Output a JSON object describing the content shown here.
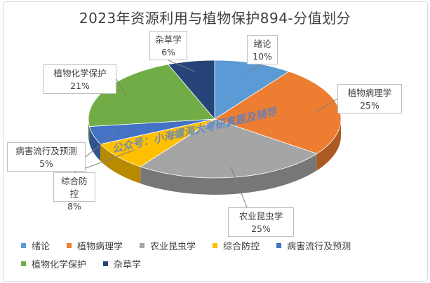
{
  "chart_data": {
    "type": "pie",
    "title": "2023年资源利用与植物保护894-分值划分",
    "slices": [
      {
        "name": "绪论",
        "value": 10,
        "label": "10%",
        "color": "#5b9bd5"
      },
      {
        "name": "植物病理学",
        "value": 25,
        "label": "25%",
        "color": "#ed7d31"
      },
      {
        "name": "农业昆虫学",
        "value": 25,
        "label": "25%",
        "color": "#a5a5a5"
      },
      {
        "name": "综合防控",
        "value": 8,
        "label": "8%",
        "color": "#ffc000"
      },
      {
        "name": "病害流行及预测",
        "value": 5,
        "label": "5%",
        "color": "#4472c4"
      },
      {
        "name": "植物化学保护",
        "value": 21,
        "label": "21%",
        "color": "#70ad47"
      },
      {
        "name": "杂草学",
        "value": 6,
        "label": "6%",
        "color": "#264478"
      }
    ],
    "legend_position": "bottom"
  },
  "watermark": "公众号：小海螺海大考研真题及辅导"
}
